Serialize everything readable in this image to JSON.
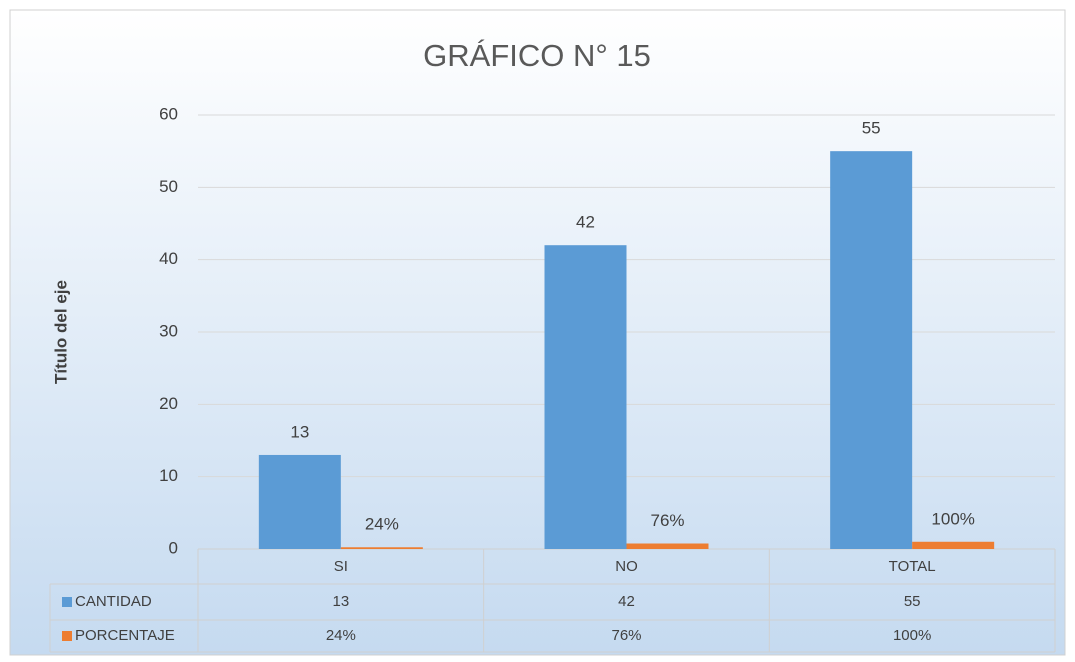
{
  "chart_data": {
    "type": "bar",
    "title": "GRÁFICO N° 15",
    "y_label": "Título del eje",
    "categories": [
      "SI",
      "NO",
      "TOTAL"
    ],
    "series": [
      {
        "name": "CANTIDAD",
        "color": "#5b9bd5",
        "values": [
          13,
          42,
          55
        ]
      },
      {
        "name": "PORCENTAJE",
        "color": "#ed7d31",
        "values": [
          0.24,
          0.76,
          1
        ],
        "value_labels": [
          "24%",
          "76%",
          "100%"
        ]
      }
    ],
    "ylim": [
      0,
      60
    ],
    "yticks": [
      0,
      10,
      20,
      30,
      40,
      50,
      60
    ],
    "grid": true,
    "data_table": true
  }
}
